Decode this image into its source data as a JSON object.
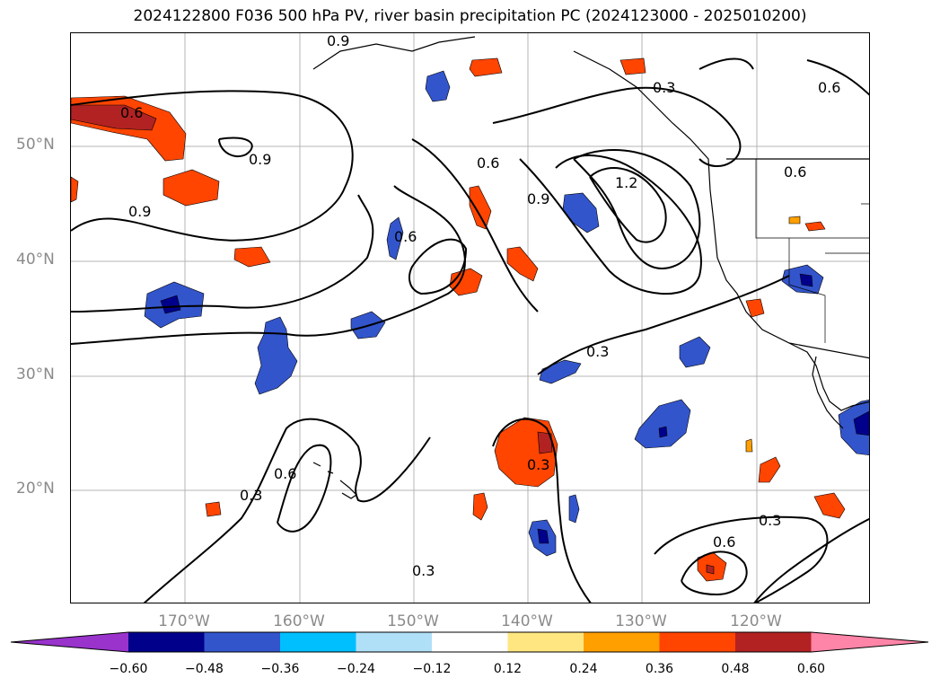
{
  "title": "2024122800 F036 500 hPa PV, river basin precipitation PC (2024123000 - 2025010200)",
  "axes": {
    "lat_labels": [
      "50°N",
      "40°N",
      "30°N",
      "20°N"
    ],
    "lon_labels": [
      "170°W",
      "160°W",
      "150°W",
      "140°W",
      "130°W",
      "120°W"
    ]
  },
  "contour_labels": [
    "0.9",
    "0.6",
    "0.9",
    "0.9",
    "0.6",
    "0.6",
    "0.9",
    "1.2",
    "0.3",
    "0.6",
    "0.6",
    "0.3",
    "0.3",
    "0.6",
    "0.3",
    "0.3",
    "0.3",
    "0.6"
  ],
  "colorbar": {
    "tick_labels": [
      "−0.60",
      "−0.48",
      "−0.36",
      "−0.24",
      "−0.12",
      "0.12",
      "0.24",
      "0.36",
      "0.48",
      "0.60"
    ],
    "colors": [
      "#9933cc",
      "#00008b",
      "#3355cc",
      "#00bfff",
      "#b0e0f8",
      "#ffffff",
      "#ffe680",
      "#ff9f00",
      "#ff4500",
      "#b22222",
      "#ff85a8"
    ]
  }
}
